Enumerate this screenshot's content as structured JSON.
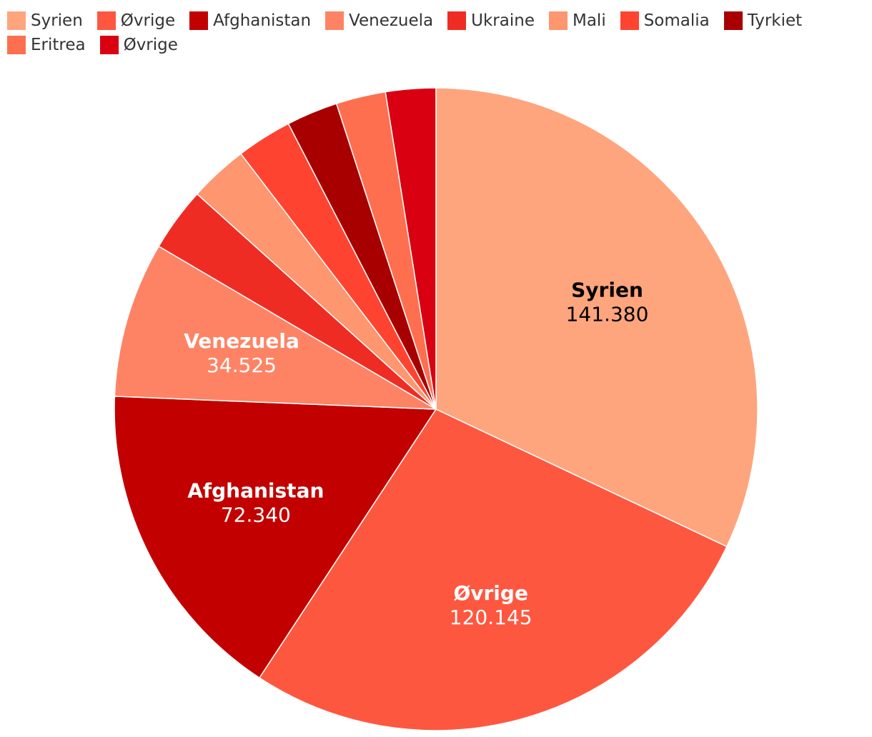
{
  "chart_data": {
    "type": "pie",
    "legend_position": "top-left",
    "slices": [
      {
        "name": "Syrien",
        "value": 141380,
        "value_label": "141.380",
        "color": "#fea57d",
        "label_color": "#000000",
        "show_label": true
      },
      {
        "name": "Øvrige",
        "value": 120145,
        "value_label": "120.145",
        "color": "#fe5740",
        "label_color": "#ffffff",
        "show_label": true
      },
      {
        "name": "Afghanistan",
        "value": 72340,
        "value_label": "72.340",
        "color": "#c20000",
        "label_color": "#ffffff",
        "show_label": true
      },
      {
        "name": "Venezuela",
        "value": 34525,
        "value_label": "34.525",
        "color": "#fe8365",
        "label_color": "#ffffff",
        "show_label": true
      },
      {
        "name": "Ukraine",
        "value": 14200,
        "color": "#ef2c24",
        "show_label": false
      },
      {
        "name": "Mali",
        "value": 13000,
        "color": "#fe966f",
        "show_label": false
      },
      {
        "name": "Somalia",
        "value": 12300,
        "color": "#fe4430",
        "show_label": false
      },
      {
        "name": "Tyrkiet",
        "value": 11400,
        "color": "#a80000",
        "show_label": false
      },
      {
        "name": "Eritrea",
        "value": 11000,
        "color": "#fe6f50",
        "show_label": false
      },
      {
        "name": "Øvrige",
        "value": 11100,
        "color": "#d90012",
        "show_label": false
      }
    ]
  }
}
